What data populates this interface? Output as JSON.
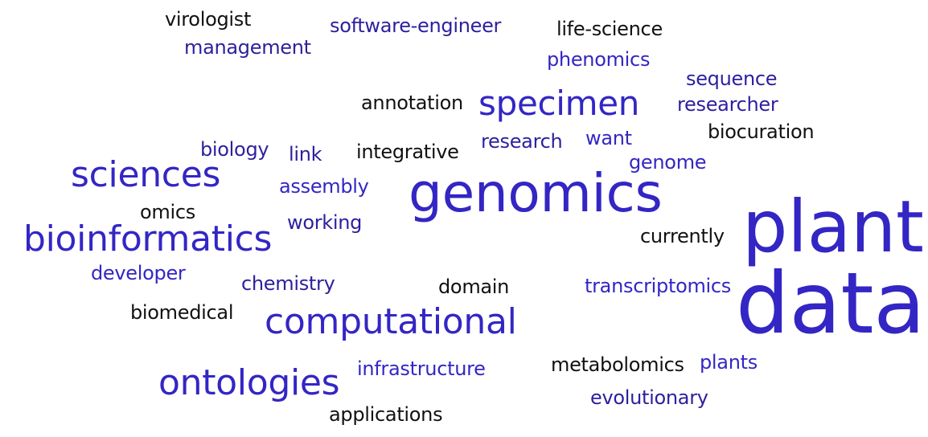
{
  "words": [
    {
      "text": "virologist",
      "color": "#111111"
    },
    {
      "text": "software-engineer",
      "color": "#2d1f9e"
    },
    {
      "text": "life-science",
      "color": "#111111"
    },
    {
      "text": "management",
      "color": "#2d1f9e"
    },
    {
      "text": "phenomics",
      "color": "#3326c4"
    },
    {
      "text": "sequence",
      "color": "#2d1f9e"
    },
    {
      "text": "annotation",
      "color": "#111111"
    },
    {
      "text": "specimen",
      "color": "#3326c4"
    },
    {
      "text": "researcher",
      "color": "#2d1f9e"
    },
    {
      "text": "biocuration",
      "color": "#111111"
    },
    {
      "text": "research",
      "color": "#2d1f9e"
    },
    {
      "text": "want",
      "color": "#3326c4"
    },
    {
      "text": "biology",
      "color": "#2d1f9e"
    },
    {
      "text": "link",
      "color": "#2d1f9e"
    },
    {
      "text": "integrative",
      "color": "#111111"
    },
    {
      "text": "genome",
      "color": "#3326c4"
    },
    {
      "text": "sciences",
      "color": "#3326c4"
    },
    {
      "text": "assembly",
      "color": "#3326c4"
    },
    {
      "text": "genomics",
      "color": "#3326c4"
    },
    {
      "text": "omics",
      "color": "#111111"
    },
    {
      "text": "working",
      "color": "#2d1f9e"
    },
    {
      "text": "plant",
      "color": "#3326c4"
    },
    {
      "text": "currently",
      "color": "#111111"
    },
    {
      "text": "bioinformatics",
      "color": "#3326c4"
    },
    {
      "text": "developer",
      "color": "#3326c4"
    },
    {
      "text": "chemistry",
      "color": "#2d1f9e"
    },
    {
      "text": "domain",
      "color": "#111111"
    },
    {
      "text": "transcriptomics",
      "color": "#3326c4"
    },
    {
      "text": "data",
      "color": "#3326c4"
    },
    {
      "text": "biomedical",
      "color": "#111111"
    },
    {
      "text": "computational",
      "color": "#3326c4"
    },
    {
      "text": "metabolomics",
      "color": "#111111"
    },
    {
      "text": "plants",
      "color": "#3326c4"
    },
    {
      "text": "infrastructure",
      "color": "#3326c4"
    },
    {
      "text": "ontologies",
      "color": "#3326c4"
    },
    {
      "text": "evolutionary",
      "color": "#2d1f9e"
    },
    {
      "text": "applications",
      "color": "#111111"
    }
  ]
}
